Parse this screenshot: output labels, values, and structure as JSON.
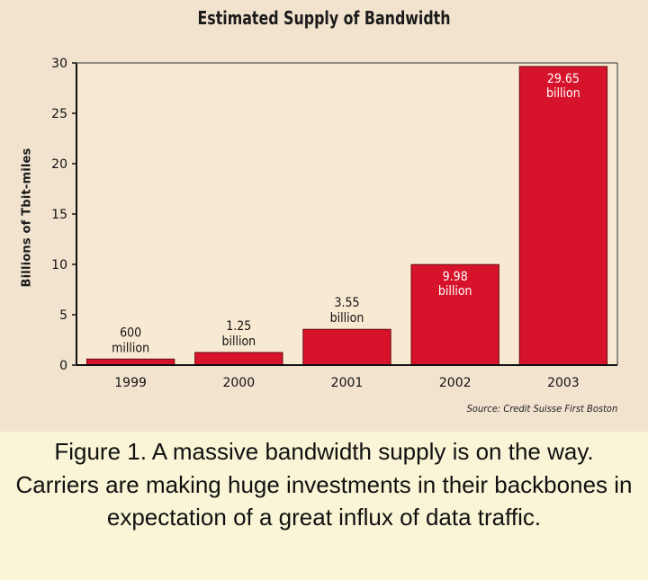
{
  "chart_data": {
    "type": "bar",
    "title": "Estimated Supply of Bandwidth",
    "ylabel": "Billions of Tbit-miles",
    "xlabel": "",
    "ylim": [
      0,
      30
    ],
    "yticks": [
      0,
      5,
      10,
      15,
      20,
      25,
      30
    ],
    "categories": [
      "1999",
      "2000",
      "2001",
      "2002",
      "2003"
    ],
    "values": [
      0.6,
      1.25,
      3.55,
      9.98,
      29.65
    ],
    "data_labels": [
      [
        "600",
        "million"
      ],
      [
        "1.25",
        "billion"
      ],
      [
        "3.55",
        "billion"
      ],
      [
        "9.98",
        "billion"
      ],
      [
        "29.65",
        "billion"
      ]
    ],
    "bar_color": "#d6132a",
    "grid": false,
    "source": "Source: Credit Suisse First Boston"
  },
  "caption": "Figure 1. A massive bandwidth supply is on the way. Carriers are making huge investments in their backbones in expectation of a great influx of data traffic."
}
